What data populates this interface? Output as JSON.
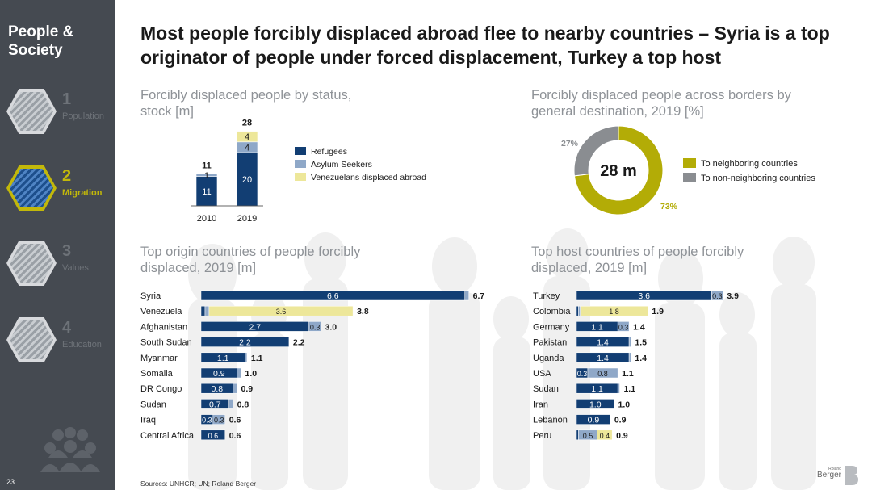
{
  "sidebar": {
    "section_title": "People & Society",
    "items": [
      {
        "number": "1",
        "label": "Population",
        "active": false
      },
      {
        "number": "2",
        "label": "Migration",
        "active": true
      },
      {
        "number": "3",
        "label": "Values",
        "active": false
      },
      {
        "number": "4",
        "label": "Education",
        "active": false
      }
    ],
    "page_number": "23"
  },
  "title": "Most people forcibly displaced abroad flee to nearby countries – Syria is a top originator of people under forced displacement, Turkey a top host",
  "sources": "Sources: UNHCR; UN; Roland Berger",
  "logo": {
    "small": "Roland",
    "big": "Berger"
  },
  "colors": {
    "navy": "#123e73",
    "light_blue": "#8fa8c8",
    "pale_yellow": "#ede79a",
    "olive": "#b3ac06",
    "grey": "#8a8d91",
    "sidebar_bg": "#454a51",
    "accent": "#c2b80a"
  },
  "chart_data": [
    {
      "type": "bar",
      "stacked": true,
      "subtitle": "Forcibly displaced people by status, stock [m]",
      "categories": [
        "2010",
        "2019"
      ],
      "series": [
        {
          "name": "Refugees",
          "values": [
            11,
            20
          ],
          "color": "#123e73"
        },
        {
          "name": "Asylum Seekers",
          "values": [
            1,
            4
          ],
          "color": "#8fa8c8"
        },
        {
          "name": "Venezuelans displaced abroad",
          "values": [
            0,
            4
          ],
          "color": "#ede79a"
        }
      ],
      "totals": [
        11,
        28
      ],
      "ylim": [
        0,
        28
      ]
    },
    {
      "type": "pie",
      "donut": true,
      "subtitle": "Forcibly displaced people across borders by general destination, 2019 [%]",
      "center_label": "28 m",
      "slices": [
        {
          "name": "To neighboring countries",
          "value": 73,
          "label": "73%",
          "color": "#b3ac06"
        },
        {
          "name": "To non-neighboring countries",
          "value": 27,
          "label": "27%",
          "color": "#8a8d91"
        }
      ]
    },
    {
      "type": "bar",
      "orientation": "horizontal",
      "stacked": true,
      "subtitle": "Top origin countries of people forcibly displaced, 2019 [m]",
      "categories": [
        "Syria",
        "Venezuela",
        "Afghanistan",
        "South Sudan",
        "Myanmar",
        "Somalia",
        "DR Congo",
        "Sudan",
        "Iraq",
        "Central Africa"
      ],
      "segments": [
        [
          {
            "value": 6.6,
            "kind": "refugees",
            "label": "6.6"
          },
          {
            "value": 0.1,
            "kind": "asylum",
            "label": ""
          }
        ],
        [
          {
            "value": 0.1,
            "kind": "refugees",
            "label": ""
          },
          {
            "value": 0.1,
            "kind": "asylum",
            "label": ""
          },
          {
            "value": 3.6,
            "kind": "venezuelans",
            "label": "3.6"
          }
        ],
        [
          {
            "value": 2.7,
            "kind": "refugees",
            "label": "2.7"
          },
          {
            "value": 0.3,
            "kind": "asylum",
            "label": "0.3"
          }
        ],
        [
          {
            "value": 2.2,
            "kind": "refugees",
            "label": "2.2"
          }
        ],
        [
          {
            "value": 1.1,
            "kind": "refugees",
            "label": "1.1"
          },
          {
            "value": 0.05,
            "kind": "asylum",
            "label": ""
          }
        ],
        [
          {
            "value": 0.9,
            "kind": "refugees",
            "label": "0.9"
          },
          {
            "value": 0.1,
            "kind": "asylum",
            "label": ""
          }
        ],
        [
          {
            "value": 0.8,
            "kind": "refugees",
            "label": "0.8"
          },
          {
            "value": 0.1,
            "kind": "asylum",
            "label": ""
          }
        ],
        [
          {
            "value": 0.7,
            "kind": "refugees",
            "label": "0.7"
          },
          {
            "value": 0.1,
            "kind": "asylum",
            "label": ""
          }
        ],
        [
          {
            "value": 0.3,
            "kind": "refugees",
            "label": "0.3"
          },
          {
            "value": 0.3,
            "kind": "asylum",
            "label": "0.3"
          }
        ],
        [
          {
            "value": 0.6,
            "kind": "refugees",
            "label": "0.6"
          }
        ]
      ],
      "totals": [
        "6.7",
        "3.8",
        "3.0",
        "2.2",
        "1.1",
        "1.0",
        "0.9",
        "0.8",
        "0.6",
        "0.6"
      ],
      "xlim": [
        0,
        6.7
      ]
    },
    {
      "type": "bar",
      "orientation": "horizontal",
      "stacked": true,
      "subtitle": "Top host countries of people forcibly displaced, 2019 [m]",
      "categories": [
        "Turkey",
        "Colombia",
        "Germany",
        "Pakistan",
        "Uganda",
        "USA",
        "Sudan",
        "Iran",
        "Lebanon",
        "Peru"
      ],
      "segments": [
        [
          {
            "value": 3.6,
            "kind": "refugees",
            "label": "3.6"
          },
          {
            "value": 0.3,
            "kind": "asylum",
            "label": "0.3"
          }
        ],
        [
          {
            "value": 0.05,
            "kind": "refugees",
            "label": ""
          },
          {
            "value": 0.05,
            "kind": "asylum",
            "label": ""
          },
          {
            "value": 1.8,
            "kind": "venezuelans",
            "label": "1.8"
          }
        ],
        [
          {
            "value": 1.1,
            "kind": "refugees",
            "label": "1.1"
          },
          {
            "value": 0.3,
            "kind": "asylum",
            "label": "0.3"
          }
        ],
        [
          {
            "value": 1.4,
            "kind": "refugees",
            "label": "1.4"
          },
          {
            "value": 0.05,
            "kind": "asylum",
            "label": ""
          }
        ],
        [
          {
            "value": 1.4,
            "kind": "refugees",
            "label": "1.4"
          },
          {
            "value": 0.05,
            "kind": "asylum",
            "label": ""
          }
        ],
        [
          {
            "value": 0.3,
            "kind": "refugees",
            "label": "0.3"
          },
          {
            "value": 0.8,
            "kind": "asylum",
            "label": "0.8"
          }
        ],
        [
          {
            "value": 1.1,
            "kind": "refugees",
            "label": "1.1"
          },
          {
            "value": 0.05,
            "kind": "asylum",
            "label": ""
          }
        ],
        [
          {
            "value": 1.0,
            "kind": "refugees",
            "label": "1.0"
          }
        ],
        [
          {
            "value": 0.9,
            "kind": "refugees",
            "label": "0.9"
          }
        ],
        [
          {
            "value": 0.05,
            "kind": "refugees",
            "label": ""
          },
          {
            "value": 0.5,
            "kind": "asylum",
            "label": "0.5"
          },
          {
            "value": 0.4,
            "kind": "venezuelans",
            "label": "0.4"
          }
        ]
      ],
      "totals": [
        "3.9",
        "1.9",
        "1.4",
        "1.5",
        "1.4",
        "1.1",
        "1.1",
        "1.0",
        "0.9",
        "0.9"
      ],
      "xlim": [
        0,
        3.9
      ]
    }
  ]
}
